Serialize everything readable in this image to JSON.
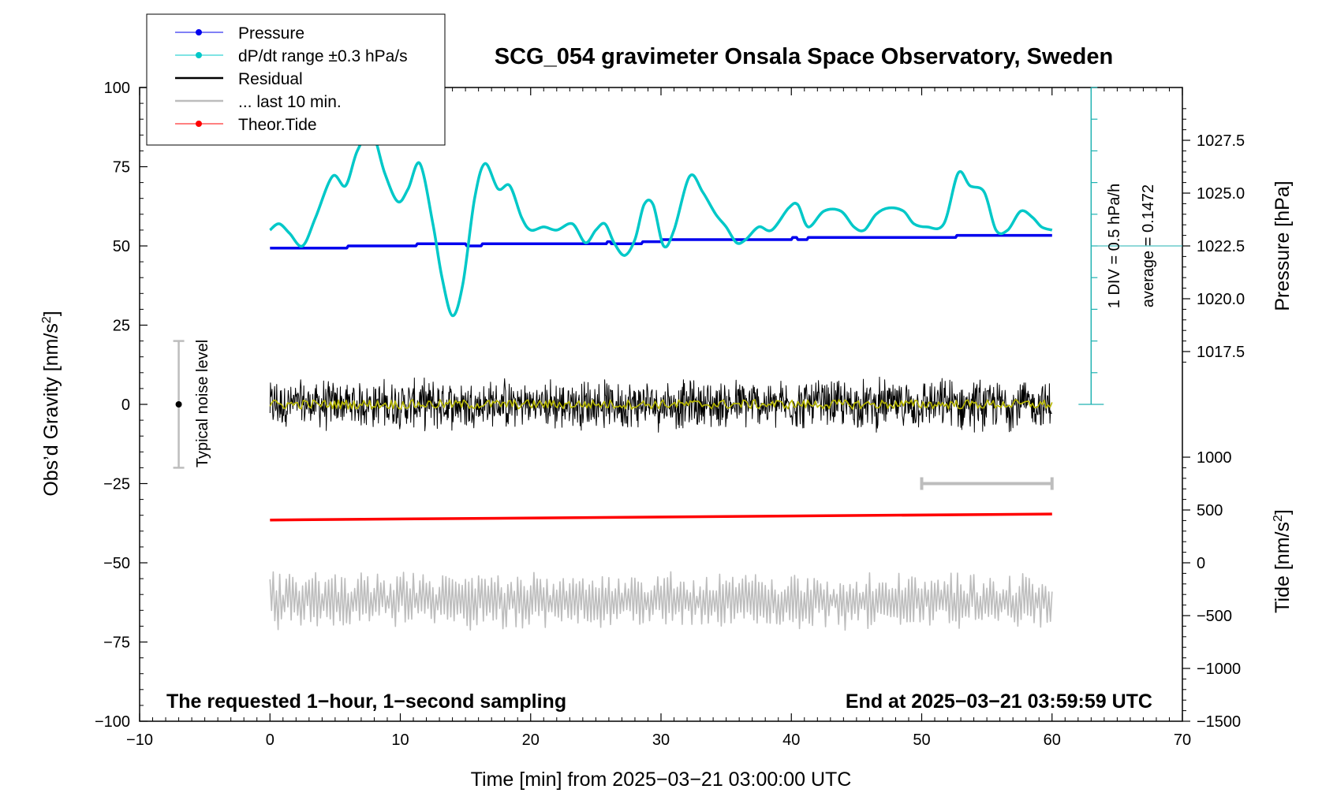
{
  "chart_data": {
    "type": "line",
    "title": "SCG_054 gravimeter Onsala Space Observatory, Sweden",
    "xlabel": "Time [min] from 2025−03−21 03:00:00 UTC",
    "ylabel": "Obs’d Gravity [nm/s",
    "ylabel_sup": "2",
    "ylabel_end": "]",
    "y2label": "Pressure [hPa]",
    "y3label": "Tide [nm/s",
    "y3label_sup": "2",
    "y3label_end": "]",
    "xlim": [
      -10,
      70
    ],
    "ylim": [
      -100,
      100
    ],
    "x_ticks": [
      {
        "v": -10,
        "label": "−10"
      },
      {
        "v": 0,
        "label": "0"
      },
      {
        "v": 10,
        "label": "10"
      },
      {
        "v": 20,
        "label": "20"
      },
      {
        "v": 30,
        "label": "30"
      },
      {
        "v": 40,
        "label": "40"
      },
      {
        "v": 50,
        "label": "50"
      },
      {
        "v": 60,
        "label": "60"
      },
      {
        "v": 70,
        "label": "70"
      }
    ],
    "y_ticks": [
      {
        "v": 100,
        "label": "100"
      },
      {
        "v": 75,
        "label": "75"
      },
      {
        "v": 50,
        "label": "50"
      },
      {
        "v": 25,
        "label": "25"
      },
      {
        "v": 0,
        "label": "0"
      },
      {
        "v": -25,
        "label": "−25"
      },
      {
        "v": -50,
        "label": "−50"
      },
      {
        "v": -75,
        "label": "−75"
      },
      {
        "v": -100,
        "label": "−100"
      }
    ],
    "pressure_axis_ticks": [
      {
        "v": 1027.5,
        "label": "1027.5"
      },
      {
        "v": 1025.0,
        "label": "1025.0"
      },
      {
        "v": 1022.5,
        "label": "1022.5"
      },
      {
        "v": 1020.0,
        "label": "1020.0"
      },
      {
        "v": 1017.5,
        "label": "1017.5"
      }
    ],
    "tide_axis_ticks": [
      {
        "v": 1000,
        "label": "1000"
      },
      {
        "v": 500,
        "label": "500"
      },
      {
        "v": 0,
        "label": "0"
      },
      {
        "v": -500,
        "label": "−500"
      },
      {
        "v": -1000,
        "label": "−1000"
      },
      {
        "v": -1500,
        "label": "−1500"
      }
    ],
    "legend": {
      "position": "top-left",
      "entries": [
        {
          "label": "Pressure",
          "color": "#0000ee",
          "marker": true
        },
        {
          "label": "dP/dt range ±0.3 hPa/s",
          "color": "#00c8c8",
          "marker": true
        },
        {
          "label": "Residual",
          "color": "#000000",
          "marker": false
        },
        {
          "label": "... last 10 min.",
          "color": "#bdbdbd",
          "marker": false
        },
        {
          "label": "Theor.Tide",
          "color": "#ff0000",
          "marker": true
        }
      ]
    },
    "series": [
      {
        "name": "Pressure",
        "color": "#0000ee",
        "axis": "pressure",
        "x": [
          0,
          5.9,
          6.0,
          11.2,
          11.3,
          15.0,
          15.1,
          16.2,
          16.3,
          25.8,
          25.9,
          26.1,
          26.2,
          28.5,
          28.6,
          30.0,
          30.1,
          40.0,
          40.1,
          40.4,
          40.5,
          41.2,
          41.3,
          52.6,
          52.7,
          60.0
        ],
        "y": [
          1022.4,
          1022.4,
          1022.5,
          1022.5,
          1022.6,
          1022.6,
          1022.5,
          1022.5,
          1022.6,
          1022.6,
          1022.7,
          1022.7,
          1022.6,
          1022.6,
          1022.7,
          1022.7,
          1022.8,
          1022.8,
          1022.9,
          1022.9,
          1022.8,
          1022.8,
          1022.9,
          1022.9,
          1023.0,
          1023.0
        ]
      },
      {
        "name": "dP/dt range ±0.3 hPa/s",
        "color": "#00c8c8",
        "axis": "gravity",
        "x": [
          0,
          0.7,
          1.5,
          2.5,
          3.5,
          4.8,
          5.8,
          6.7,
          7.8,
          8.8,
          9.8,
          10.6,
          11.5,
          12.5,
          13.2,
          14.0,
          14.8,
          15.7,
          16.5,
          17.5,
          18.4,
          19.3,
          20.0,
          21.0,
          22.0,
          23.2,
          24.2,
          25.0,
          25.7,
          26.4,
          27.2,
          28.0,
          28.7,
          29.4,
          30.2,
          31.0,
          32.2,
          33.2,
          34.2,
          35.0,
          35.8,
          36.5,
          37.5,
          38.5,
          39.8,
          40.5,
          41.3,
          42.5,
          43.8,
          44.8,
          45.6,
          46.5,
          47.5,
          48.6,
          49.4,
          50.4,
          51.7,
          52.8,
          53.7,
          54.8,
          55.7,
          56.6,
          57.6,
          58.5,
          59.2,
          60.0
        ],
        "y": [
          55,
          57,
          54,
          50,
          59,
          72,
          69,
          80,
          86,
          73,
          64,
          68,
          76,
          57,
          40,
          28,
          38,
          65,
          76,
          68,
          69,
          59,
          55,
          56,
          55,
          57,
          51,
          55,
          57,
          51,
          47,
          52,
          63,
          63,
          50,
          55,
          72,
          67,
          60,
          56,
          51,
          52,
          56,
          55,
          62,
          63,
          56,
          61,
          61,
          56,
          55,
          60,
          62,
          61,
          57,
          56,
          57,
          73,
          69,
          67,
          55,
          55,
          61,
          59,
          56,
          55
        ]
      },
      {
        "name": "Residual",
        "color": "#000000",
        "axis": "gravity",
        "amplitude": 9,
        "x_range": [
          0,
          60
        ]
      },
      {
        "name": "Residual smoothed",
        "color": "#b8b800",
        "axis": "gravity",
        "amplitude": 1.5,
        "x_range": [
          0,
          60
        ]
      },
      {
        "name": "... last 10 min.",
        "color": "#bdbdbd",
        "axis": "gravity",
        "center": -62,
        "amplitude": 7,
        "x_range": [
          0,
          60
        ]
      },
      {
        "name": "Theor.Tide",
        "color": "#ff0000",
        "axis": "gravity",
        "x": [
          0,
          60
        ],
        "y": [
          -36.5,
          -34.6
        ]
      }
    ],
    "annotations": {
      "noise_bar_label": "Typical noise level",
      "noise_bar_x": -7,
      "noise_bar_range": [
        -20,
        20
      ],
      "last10_bar_range": [
        50,
        60
      ],
      "last10_bar_y": -25,
      "scale_note": "1 DIV = 0.5 hPa/h",
      "average_note": "average = 0.1472",
      "scale_x": 63,
      "scale_range": [
        0,
        100
      ],
      "scale_divisions": 10,
      "scale_reference_y": 50,
      "left_note": "The requested 1−hour, 1−second sampling",
      "right_note": "End at 2025−03−21 03:59:59 UTC"
    }
  }
}
